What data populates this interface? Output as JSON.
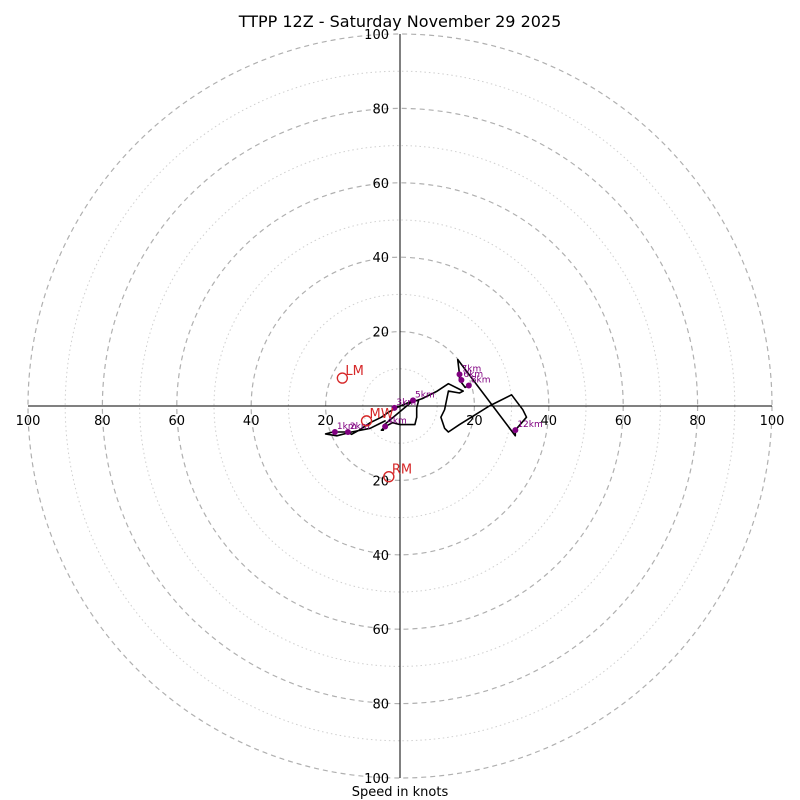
{
  "chart_data": {
    "type": "line",
    "title": "TTPP 12Z - Saturday November 29 2025",
    "xlabel": "Speed in knots",
    "range": [
      0,
      100
    ],
    "ring_step_major": 20,
    "ring_step_minor": 10,
    "grid": true,
    "tick_labels": {
      "left": [
        "100",
        "80",
        "60",
        "40",
        "20"
      ],
      "right": [
        "20",
        "40",
        "60",
        "80",
        "100"
      ],
      "top": [
        "20",
        "40",
        "60",
        "80",
        "100"
      ],
      "bottom": [
        "20",
        "40",
        "60",
        "80",
        "100"
      ]
    },
    "series": [
      {
        "color": "#000000",
        "points": [
          [
            -6,
            -5
          ],
          [
            -4,
            -4
          ],
          [
            -8,
            -6
          ],
          [
            -13,
            -7
          ],
          [
            -17,
            -8
          ],
          [
            -20,
            -7.5
          ],
          [
            -18,
            -7
          ],
          [
            -14,
            -7
          ],
          [
            -13,
            -7.6
          ],
          [
            -11,
            -6.5
          ],
          [
            -8,
            -4.5
          ],
          [
            -5,
            -3
          ],
          [
            -3,
            -1.6
          ],
          [
            -1,
            -0.5
          ],
          [
            1,
            0.4
          ],
          [
            3,
            1.2
          ],
          [
            4,
            1.4
          ],
          [
            5,
            1.5
          ],
          [
            4.5,
            -0.5
          ],
          [
            4.5,
            -3
          ],
          [
            4,
            -5
          ],
          [
            0,
            -5
          ],
          [
            -2,
            -4.5
          ],
          [
            -4,
            -5.5
          ],
          [
            -5,
            -6.5
          ],
          [
            -4.5,
            -6.5
          ],
          [
            -4.2,
            -5
          ],
          [
            3,
            1
          ],
          [
            6,
            2
          ],
          [
            10,
            4
          ],
          [
            13,
            6
          ],
          [
            17,
            4
          ],
          [
            16,
            3.5
          ],
          [
            13,
            4
          ],
          [
            12,
            -1
          ],
          [
            11,
            -3
          ],
          [
            12,
            -6
          ],
          [
            13,
            -7
          ],
          [
            16,
            -5
          ],
          [
            20,
            -2.5
          ],
          [
            24,
            0
          ],
          [
            30,
            3
          ],
          [
            31.5,
            1
          ],
          [
            33,
            -1
          ],
          [
            34,
            -3
          ],
          [
            31,
            -6.5
          ],
          [
            31,
            -8
          ],
          [
            15.5,
            12.5
          ],
          [
            16,
            8.5
          ],
          [
            16,
            7
          ],
          [
            17.5,
            5
          ],
          [
            18.5,
            5.5
          ]
        ]
      }
    ],
    "height_markers": [
      {
        "label": "1km",
        "u": -17.5,
        "v": -7
      },
      {
        "label": "2km",
        "u": -14,
        "v": -7
      },
      {
        "label": "3km",
        "u": -1.5,
        "v": -0.5
      },
      {
        "label": "4km",
        "u": -4,
        "v": -5.5
      },
      {
        "label": "5km",
        "u": 3.5,
        "v": 1.5
      },
      {
        "label": "6km",
        "u": 16.5,
        "v": 7
      },
      {
        "label": "7km",
        "u": 16,
        "v": 8.5
      },
      {
        "label": "8km",
        "u": 18.5,
        "v": 5.5
      },
      {
        "label": "12km",
        "u": 31,
        "v": -6.5
      }
    ],
    "storm_motion": [
      {
        "label": "LM",
        "u": -15.5,
        "v": 7.5
      },
      {
        "label": "MW",
        "u": -9,
        "v": -4
      },
      {
        "label": "RM",
        "u": -3,
        "v": -19
      }
    ],
    "colors": {
      "hodograph": "#000000",
      "height_markers": "#800080",
      "storm_motion": "#d62728",
      "grid": "#b0b0b0"
    }
  }
}
